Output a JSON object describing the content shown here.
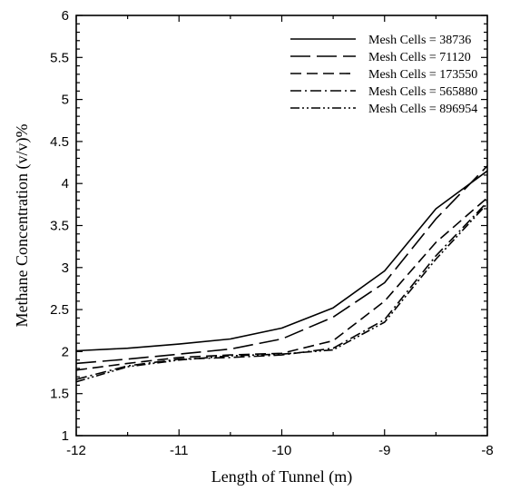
{
  "chart_data": {
    "type": "line",
    "title": "",
    "xlabel": "Length of Tunnel (m)",
    "ylabel": "Methane Concentration (v/v)%",
    "xlim": [
      -12,
      -8
    ],
    "ylim": [
      1,
      6
    ],
    "xticks": [
      -12,
      -11,
      -10,
      -9,
      -8
    ],
    "yticks": [
      1,
      1.5,
      2,
      2.5,
      3,
      3.5,
      4,
      4.5,
      5,
      5.5,
      6
    ],
    "legend_position": "top-right",
    "grid": false,
    "series": [
      {
        "name": "Mesh Cells = 38736",
        "dash": "solid",
        "x": [
          -12,
          -11.5,
          -11,
          -10.5,
          -10,
          -9.5,
          -9,
          -8.5,
          -8
        ],
        "y": [
          2.01,
          2.04,
          2.09,
          2.15,
          2.28,
          2.52,
          2.96,
          3.7,
          4.15
        ]
      },
      {
        "name": "Mesh Cells = 71120",
        "dash": "long-dash",
        "x": [
          -12,
          -11.5,
          -11,
          -10.5,
          -10,
          -9.5,
          -9,
          -8.5,
          -8
        ],
        "y": [
          1.86,
          1.91,
          1.97,
          2.03,
          2.15,
          2.41,
          2.82,
          3.58,
          4.21
        ]
      },
      {
        "name": "Mesh Cells = 173550",
        "dash": "dash",
        "x": [
          -12,
          -11.5,
          -11,
          -10.5,
          -10,
          -9.5,
          -9,
          -8.5,
          -8
        ],
        "y": [
          1.78,
          1.86,
          1.93,
          1.96,
          1.98,
          2.13,
          2.6,
          3.3,
          3.83
        ]
      },
      {
        "name": "Mesh Cells = 565880",
        "dash": "dash-dot",
        "x": [
          -12,
          -11.5,
          -11,
          -10.5,
          -10,
          -9.5,
          -9,
          -8.5,
          -8
        ],
        "y": [
          1.67,
          1.83,
          1.91,
          1.93,
          1.96,
          2.04,
          2.38,
          3.14,
          3.78
        ]
      },
      {
        "name": "Mesh Cells = 896954",
        "dash": "dash-dot-dot",
        "x": [
          -12,
          -11.5,
          -11,
          -10.5,
          -10,
          -9.5,
          -9,
          -8.5,
          -8
        ],
        "y": [
          1.64,
          1.82,
          1.9,
          1.95,
          1.97,
          2.02,
          2.35,
          3.1,
          3.76
        ]
      }
    ]
  }
}
